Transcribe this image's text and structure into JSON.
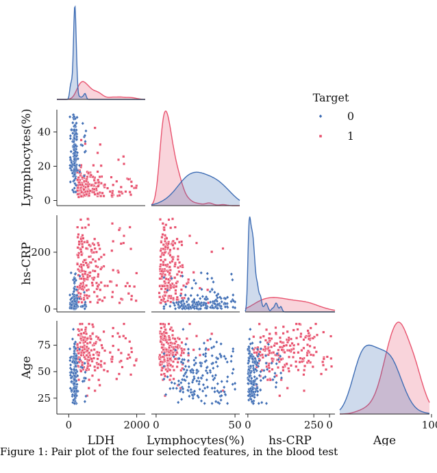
{
  "chart_data": {
    "type": "pairplot",
    "variables": [
      "LDH",
      "Lymphocytes(%)",
      "hs-CRP",
      "Age"
    ],
    "diagonal": "kde",
    "corner": true,
    "legend": {
      "title": "Target",
      "placement": "right",
      "entries": [
        "0",
        "1"
      ]
    },
    "colors": {
      "0": "#3d6cb4",
      "1": "#e8526e"
    },
    "ticks": {
      "LDH": [
        "0",
        "2000"
      ],
      "Lymphocytes(%)": [
        "0",
        "20",
        "40"
      ],
      "Lymphocytes(%)_x": [
        "0",
        "50"
      ],
      "hs-CRP": [
        "0",
        "200"
      ],
      "hs-CRP_x": [
        "0",
        "250"
      ],
      "Age": [
        "25",
        "50",
        "75"
      ],
      "Age_x": [
        "0",
        "100"
      ]
    },
    "axis_ranges": {
      "LDH": [
        -350,
        2250
      ],
      "Lymphocytes(%)": [
        -3,
        53
      ],
      "hs-CRP": [
        -10,
        330
      ],
      "Age": [
        10,
        98
      ]
    },
    "groups": {
      "0": {
        "n": 170,
        "LDH": {
          "median": 180,
          "range": [
            20,
            500
          ],
          "peak": 170
        },
        "Lymphocytes(%)": {
          "mean": 27,
          "range": [
            5,
            50
          ]
        },
        "hs-CRP": {
          "median": 5,
          "range": [
            0,
            130
          ]
        },
        "Age": {
          "modes": [
            35,
            60
          ],
          "range": [
            20,
            90
          ]
        }
      },
      "1": {
        "n": 200,
        "LDH": {
          "median": 500,
          "range": [
            150,
            2000
          ]
        },
        "Lymphocytes(%)": {
          "mode": 3,
          "range": [
            0,
            45
          ]
        },
        "hs-CRP": {
          "median": 80,
          "range": [
            0,
            320
          ]
        },
        "Age": {
          "mode": 68,
          "range": [
            25,
            95
          ]
        }
      }
    }
  },
  "caption": "Figure 1: Pair plot of the four selected features, in the blood test"
}
